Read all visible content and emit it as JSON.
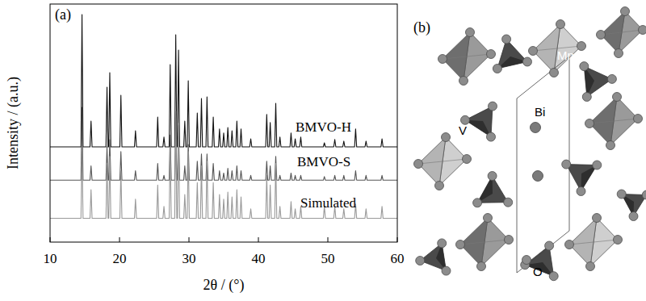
{
  "chart_data": {
    "type": "line",
    "panel_label": "(a)",
    "x_label": "2θ / (°)",
    "y_label": "Intensity / (a.u.)",
    "x": [
      10,
      14.45,
      14.6,
      14.75,
      15.75,
      15.9,
      16.05,
      18.05,
      18.2,
      18.35,
      18.45,
      18.6,
      18.75,
      20.05,
      20.2,
      20.35,
      22.15,
      22.3,
      22.45,
      25.35,
      25.5,
      25.65,
      26.25,
      26.4,
      26.55,
      27.15,
      27.3,
      27.45,
      27.95,
      28.1,
      28.25,
      28.35,
      28.5,
      28.65,
      29.25,
      29.4,
      29.55,
      29.75,
      29.9,
      30.05,
      31.05,
      31.2,
      31.35,
      31.65,
      31.8,
      31.95,
      32.45,
      32.6,
      32.75,
      33.35,
      33.5,
      33.65,
      34.25,
      34.4,
      34.55,
      34.85,
      35.0,
      35.15,
      35.45,
      35.6,
      35.75,
      36.05,
      36.2,
      36.35,
      36.75,
      36.9,
      37.05,
      37.35,
      37.5,
      37.65,
      38.75,
      38.9,
      39.05,
      41.05,
      41.2,
      41.35,
      41.55,
      41.7,
      41.85,
      42.35,
      42.5,
      42.65,
      42.95,
      43.1,
      43.25,
      44.55,
      44.7,
      44.85,
      45.15,
      45.3,
      45.45,
      45.95,
      46.1,
      46.25,
      49.35,
      49.5,
      49.65,
      50.85,
      51.0,
      51.15,
      52.15,
      52.3,
      52.45,
      53.85,
      54.0,
      54.15,
      55.35,
      55.5,
      55.65,
      57.65,
      57.8,
      57.95,
      60
    ],
    "series": [
      {
        "name": "BMVO-H",
        "color": "#111111",
        "values": [
          40,
          40,
          95.6,
          40,
          40,
          50.8,
          40,
          40,
          65.1,
          40,
          40,
          71.2,
          40,
          40,
          61.7,
          40,
          40,
          46.8,
          40,
          40,
          52.5,
          40,
          40,
          44.1,
          40,
          40,
          74.6,
          40,
          40,
          87.1,
          40,
          40,
          80.7,
          40,
          40,
          50.8,
          40,
          40,
          67.8,
          40,
          40,
          54.2,
          40,
          40,
          60.3,
          40,
          40,
          61,
          40,
          40,
          52.5,
          40,
          40,
          47.5,
          40,
          40,
          45.8,
          40,
          40,
          48.1,
          40,
          40,
          46.8,
          40,
          40,
          50.8,
          40,
          40,
          47.5,
          40,
          40,
          43.4,
          40,
          40,
          53.6,
          40,
          40,
          50.2,
          40,
          40,
          58.3,
          40,
          40,
          44.1,
          40,
          40,
          45.8,
          40,
          40,
          43.4,
          40,
          40,
          44.1,
          40,
          40,
          41.7,
          40,
          40,
          43.1,
          40,
          40,
          42.4,
          40,
          40,
          47.5,
          40,
          40,
          42.4,
          40,
          40,
          43.4,
          40,
          40
        ]
      },
      {
        "name": "BMVO-S",
        "color": "#555555",
        "values": [
          26,
          26,
          56.6,
          26,
          26,
          32,
          26,
          26,
          40,
          26,
          26,
          43,
          26,
          26,
          38,
          26,
          26,
          30,
          26,
          26,
          33,
          26,
          26,
          28,
          26,
          26,
          45,
          26,
          26,
          52,
          26,
          26,
          49,
          26,
          26,
          32,
          26,
          26,
          41,
          26,
          26,
          34,
          26,
          26,
          37,
          26,
          26,
          37,
          26,
          26,
          33,
          26,
          26,
          30,
          26,
          26,
          29,
          26,
          26,
          31,
          26,
          26,
          30,
          26,
          26,
          32,
          26,
          26,
          30,
          26,
          26,
          28,
          26,
          26,
          34,
          26,
          26,
          32,
          26,
          26,
          36,
          26,
          26,
          28,
          26,
          26,
          29,
          26,
          26,
          28,
          26,
          26,
          28,
          26,
          26,
          27.5,
          26,
          26,
          28,
          26,
          26,
          28,
          26,
          26,
          30,
          26,
          26,
          28,
          26,
          26,
          28,
          26,
          26
        ]
      },
      {
        "name": "Simulated",
        "color": "#999999",
        "values": [
          10,
          10,
          38,
          10,
          10,
          22,
          10,
          10,
          33,
          10,
          10,
          36,
          10,
          10,
          30,
          10,
          10,
          18,
          10,
          10,
          24,
          10,
          10,
          15,
          10,
          10,
          40,
          10,
          10,
          55,
          10,
          10,
          50,
          10,
          10,
          20,
          10,
          10,
          38,
          10,
          10,
          25,
          10,
          10,
          32,
          10,
          10,
          34,
          10,
          10,
          25,
          10,
          10,
          20,
          10,
          10,
          18,
          10,
          10,
          21,
          10,
          10,
          19,
          10,
          10,
          22,
          10,
          10,
          19,
          10,
          10,
          14,
          10,
          10,
          28,
          10,
          10,
          24,
          10,
          10,
          33,
          10,
          10,
          15,
          10,
          10,
          17,
          10,
          10,
          14,
          10,
          10,
          15,
          10,
          10,
          15,
          10,
          10,
          15,
          10,
          10,
          14,
          10,
          10,
          16,
          10,
          10,
          14,
          10,
          10,
          15,
          10,
          10
        ]
      }
    ],
    "xlim": [
      10,
      60
    ],
    "xticks": [
      10,
      20,
      30,
      40,
      50,
      60
    ],
    "ylim": [
      0,
      100
    ],
    "tick_labels": "x",
    "grid": false
  },
  "diagram": {
    "label": "(b)",
    "atoms": [
      "Mn",
      "Bi",
      "V",
      "O"
    ]
  }
}
